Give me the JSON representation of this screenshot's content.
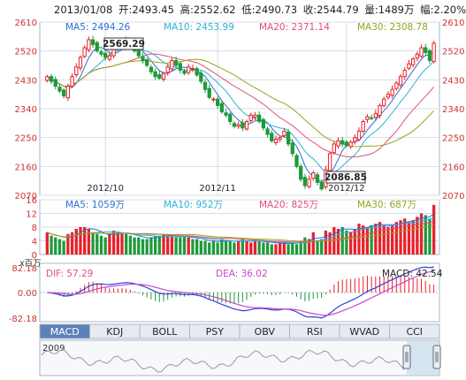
{
  "header": {
    "date": "2013/01/08",
    "open_label": "开:",
    "open": "2493.45",
    "high_label": "高:",
    "high": "2552.62",
    "low_label": "低:",
    "low": "2490.73",
    "close_label": "收:",
    "close": "2544.79",
    "volume_label": "量:",
    "volume": "1489万",
    "change_label": "幅:",
    "change": "2.20%"
  },
  "ma_legend": [
    {
      "label": "MA5: 2494.26",
      "color": "#2b6fd6"
    },
    {
      "label": "MA10: 2453.99",
      "color": "#2bb3d9"
    },
    {
      "label": "MA20: 2371.14",
      "color": "#e0507a"
    },
    {
      "label": "MA30: 2308.78",
      "color": "#9aa21e"
    }
  ],
  "vol_legend": [
    {
      "label": "MA5: 1059万",
      "color": "#2b6fd6"
    },
    {
      "label": "MA10: 952万",
      "color": "#2bb3d9"
    },
    {
      "label": "MA20: 825万",
      "color": "#e0507a"
    },
    {
      "label": "MA30: 687万",
      "color": "#9aa21e"
    }
  ],
  "macd_legend": {
    "unit": "x百万",
    "dif": "DIF: 57.29",
    "dea": "DEA: 36.02",
    "macd": "MACD: 42.54",
    "colors": {
      "dif": "#e0507a",
      "dea": "#cc44cc",
      "macd": "#222222"
    }
  },
  "annotations": {
    "high_label": "2569.29",
    "low_label": "2086.85"
  },
  "tabs": [
    {
      "label": "MACD",
      "active": true
    },
    {
      "label": "KDJ",
      "active": false
    },
    {
      "label": "BOLL",
      "active": false
    },
    {
      "label": "PSY",
      "active": false
    },
    {
      "label": "OBV",
      "active": false
    },
    {
      "label": "RSI",
      "active": false
    },
    {
      "label": "WVAD",
      "active": false
    },
    {
      "label": "CCI",
      "active": false
    }
  ],
  "navigator": {
    "year_label": "2009"
  },
  "colors": {
    "up": "#e8202a",
    "down": "#1e9a3a",
    "grid": "#d8dde6",
    "axis_text": "#cc3333"
  },
  "chart_data": [
    {
      "type": "candlestick",
      "title": "",
      "x_labels": [
        "2012/10",
        "2012/11",
        "2012/12"
      ],
      "y_ticks": [
        2070,
        2160,
        2250,
        2340,
        2430,
        2520,
        2610
      ],
      "ylim": [
        2070,
        2610
      ],
      "grid": true,
      "close_series": [
        2440,
        2425,
        2410,
        2395,
        2380,
        2410,
        2440,
        2470,
        2500,
        2530,
        2555,
        2540,
        2520,
        2510,
        2500,
        2505,
        2525,
        2540,
        2550,
        2545,
        2535,
        2520,
        2505,
        2490,
        2475,
        2455,
        2440,
        2435,
        2450,
        2470,
        2490,
        2475,
        2460,
        2450,
        2470,
        2465,
        2445,
        2425,
        2400,
        2375,
        2370,
        2350,
        2330,
        2320,
        2300,
        2285,
        2290,
        2280,
        2300,
        2320,
        2320,
        2300,
        2280,
        2260,
        2240,
        2245,
        2250,
        2270,
        2230,
        2200,
        2160,
        2120,
        2100,
        2120,
        2140,
        2110,
        2090,
        2150,
        2200,
        2230,
        2240,
        2230,
        2225,
        2235,
        2250,
        2270,
        2300,
        2315,
        2310,
        2325,
        2350,
        2370,
        2385,
        2400,
        2420,
        2440,
        2460,
        2480,
        2495,
        2510,
        2530,
        2515,
        2490,
        2544
      ]
    },
    {
      "type": "bar",
      "name": "volume",
      "y_ticks": [
        0,
        4,
        8,
        12,
        16
      ],
      "ylim": [
        0,
        16
      ],
      "values": [
        6.5,
        5.5,
        5.0,
        4.5,
        4.0,
        6.0,
        6.5,
        7.5,
        8.0,
        8.0,
        7.5,
        6.5,
        6.0,
        5.5,
        5.0,
        6.0,
        7.0,
        6.5,
        6.0,
        6.0,
        5.5,
        5.0,
        5.0,
        4.5,
        4.5,
        5.0,
        5.5,
        5.5,
        6.0,
        5.5,
        5.5,
        5.0,
        5.0,
        5.5,
        5.0,
        4.5,
        4.5,
        4.0,
        4.0,
        3.5,
        4.0,
        3.5,
        4.5,
        4.0,
        4.0,
        3.5,
        4.0,
        4.5,
        4.0,
        3.5,
        4.0,
        4.0,
        3.5,
        3.5,
        3.0,
        3.0,
        3.5,
        3.5,
        3.0,
        3.5,
        3.0,
        4.0,
        5.0,
        4.5,
        6.5,
        4.0,
        4.5,
        7.0,
        6.5,
        8.0,
        7.5,
        8.0,
        7.0,
        6.5,
        7.5,
        9.0,
        8.5,
        8.0,
        8.5,
        9.0,
        9.5,
        8.5,
        8.0,
        8.5,
        9.5,
        10.0,
        10.5,
        9.5,
        10.0,
        11.0,
        12.0,
        11.5,
        10.5,
        14.5
      ]
    },
    {
      "type": "line",
      "name": "MACD",
      "y_ticks": [
        -82.18,
        0.0,
        82.18
      ],
      "ylim": [
        -82.18,
        82.18
      ]
    }
  ]
}
